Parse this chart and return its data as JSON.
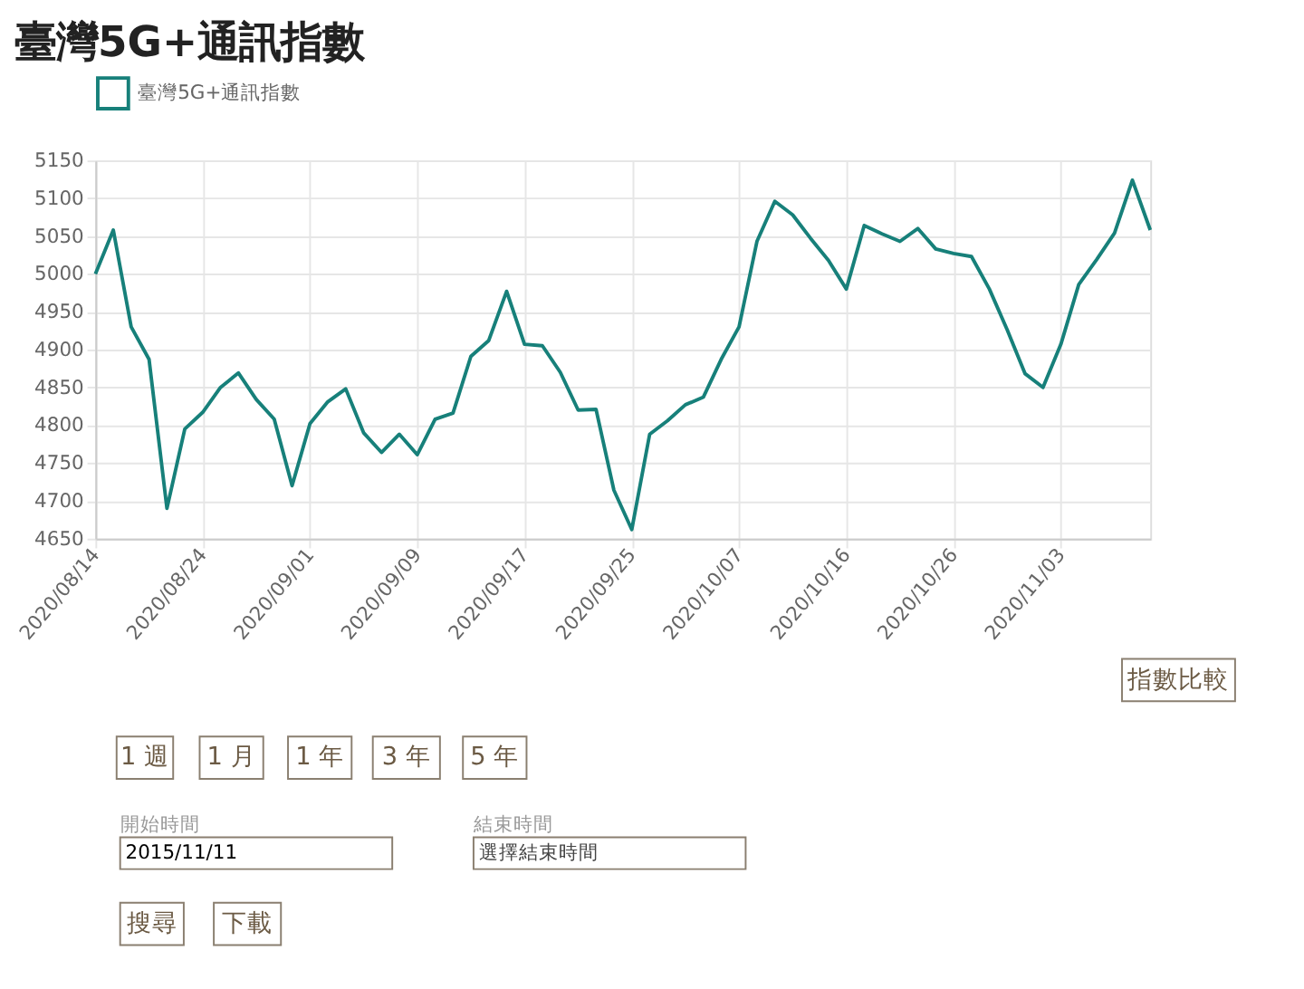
{
  "chart_data": {
    "type": "line",
    "title": "臺灣5G+通訊指數",
    "categories": [
      "2020/08/14",
      null,
      null,
      null,
      null,
      null,
      "2020/08/24",
      null,
      null,
      null,
      null,
      null,
      "2020/09/01",
      null,
      null,
      null,
      null,
      null,
      "2020/09/09",
      null,
      null,
      null,
      null,
      null,
      "2020/09/17",
      null,
      null,
      null,
      null,
      null,
      "2020/09/25",
      null,
      null,
      null,
      null,
      null,
      "2020/10/07",
      null,
      null,
      null,
      null,
      null,
      "2020/10/16",
      null,
      null,
      null,
      null,
      null,
      "2020/10/26",
      null,
      null,
      null,
      null,
      null,
      "2020/11/03",
      null,
      null,
      null,
      null,
      null
    ],
    "series": [
      {
        "name": "臺灣5G+通訊指數",
        "color": "#17807a",
        "values": [
          5000,
          5058,
          4930,
          4887,
          4690,
          4795,
          4817,
          4850,
          4869,
          4834,
          4808,
          4720,
          4802,
          4831,
          4848,
          4790,
          4764,
          4788,
          4761,
          4808,
          4816,
          4891,
          4912,
          4977,
          4907,
          4905,
          4870,
          4820,
          4821,
          4714,
          4662,
          4788,
          4806,
          4827,
          4837,
          4887,
          4930,
          5043,
          5096,
          5078,
          5047,
          5018,
          4980,
          5064,
          5053,
          5043,
          5060,
          5033,
          5027,
          5023,
          4980,
          4926,
          4868,
          4850,
          4907,
          4986,
          5019,
          5054,
          5124,
          5058
        ]
      }
    ],
    "ylim": [
      4650,
      5150
    ],
    "yticks": [
      4650,
      4700,
      4750,
      4800,
      4850,
      4900,
      4950,
      5000,
      5050,
      5100,
      5150
    ],
    "grid": true,
    "legend": "top",
    "marker": "none",
    "line_style": "solid",
    "annotations": [
      "指數比較",
      "1 週",
      "1 月",
      "1 年",
      "3 年",
      "5 年",
      "開始時間",
      "2015/11/11",
      "結束時間",
      "選擇結束時間",
      "搜尋",
      "下載"
    ]
  }
}
